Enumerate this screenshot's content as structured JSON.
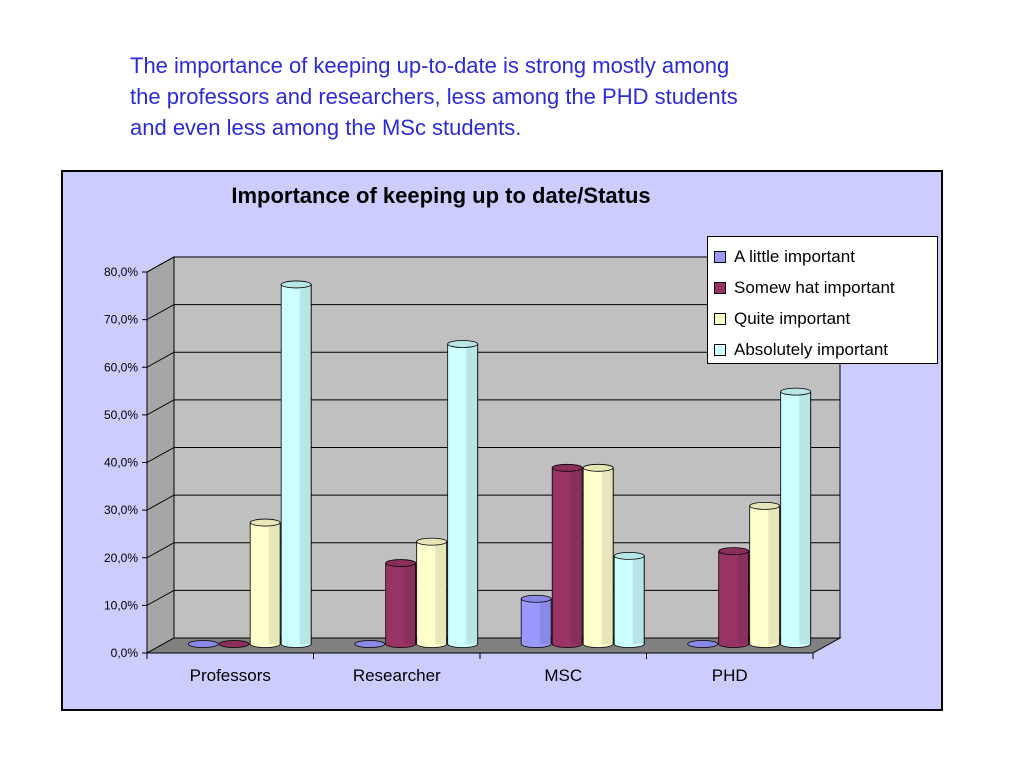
{
  "caption": {
    "line1": "The importance of keeping up-to-date is strong mostly among",
    "line2": "the professors and researchers, less among the PHD students",
    "line3": "and even less among the MSc students."
  },
  "chart_data": {
    "type": "bar",
    "title": "Importance of keeping up to date/Status",
    "categories": [
      "Professors",
      "Researcher",
      "MSC",
      "PHD"
    ],
    "series": [
      {
        "name": "A little important",
        "color": "#9999ff",
        "values": [
          0.0,
          0.0,
          9.5,
          0.0
        ]
      },
      {
        "name": "Somew hat important",
        "color": "#993366",
        "values": [
          0.0,
          17.0,
          37.0,
          19.5
        ]
      },
      {
        "name": "Quite important",
        "color": "#ffffcc",
        "values": [
          25.5,
          21.5,
          37.0,
          29.0
        ]
      },
      {
        "name": "Absolutely important",
        "color": "#ccffff",
        "values": [
          75.5,
          63.0,
          18.5,
          53.0
        ]
      }
    ],
    "ylim": [
      0,
      80
    ],
    "yticks": [
      "0,0%",
      "10,0%",
      "20,0%",
      "30,0%",
      "40,0%",
      "50,0%",
      "60,0%",
      "70,0%",
      "80,0%"
    ],
    "grid": true,
    "legend_position": "top-right",
    "colors": {
      "plot_background": "#c0c0c0",
      "chart_background": "#ccccff",
      "floor": "#808080"
    }
  }
}
